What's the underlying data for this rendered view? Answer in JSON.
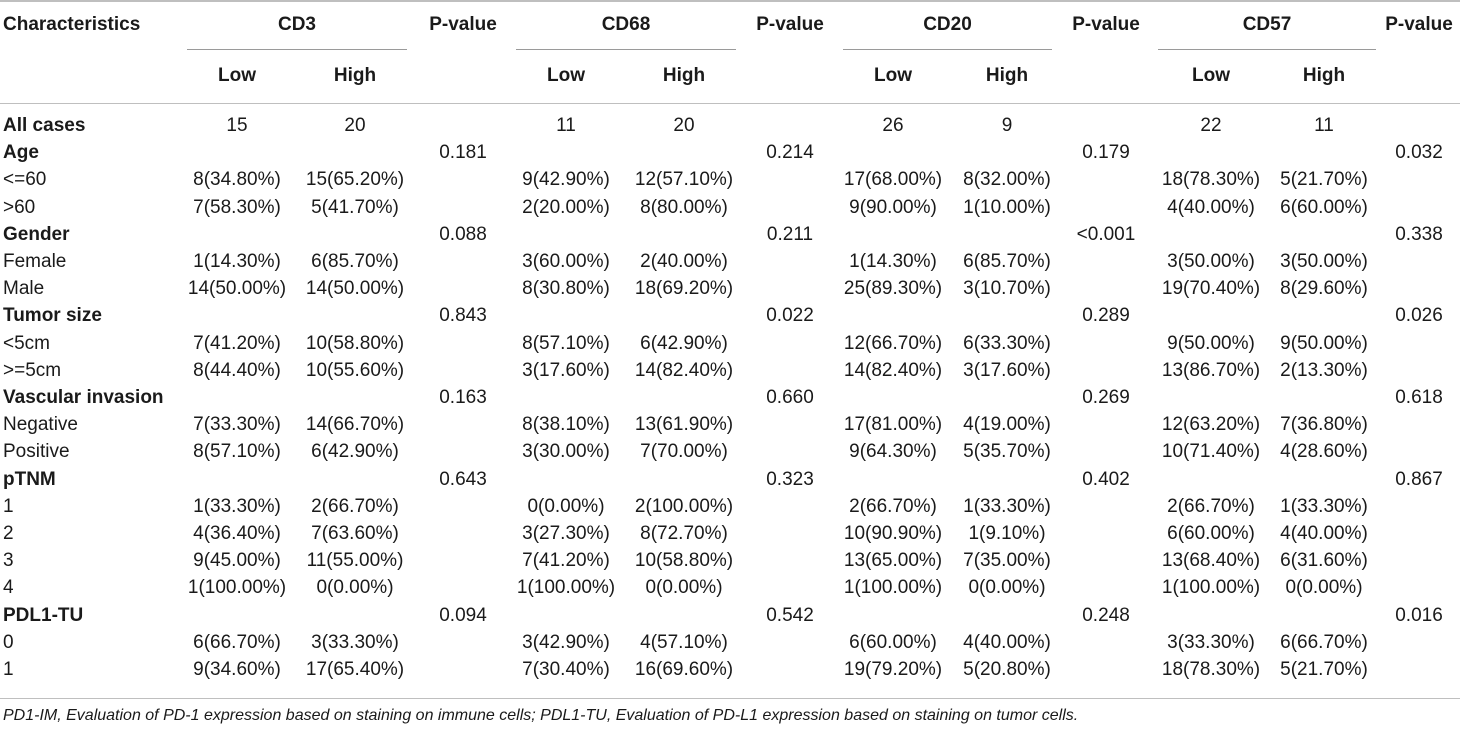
{
  "header": {
    "characteristics": "Characteristics",
    "groups": [
      "CD3",
      "CD68",
      "CD20",
      "CD57"
    ],
    "pvalue": "P-value",
    "low": "Low",
    "high": "High"
  },
  "rows": [
    {
      "label": "All cases",
      "bold": true,
      "values": [
        "15",
        "20",
        "",
        "11",
        "20",
        "",
        "26",
        "9",
        "",
        "22",
        "11",
        ""
      ]
    },
    {
      "label": "Age",
      "bold": true,
      "values": [
        "",
        "",
        "0.181",
        "",
        "",
        "0.214",
        "",
        "",
        "0.179",
        "",
        "",
        "0.032"
      ]
    },
    {
      "label": "<=60",
      "bold": false,
      "values": [
        "8(34.80%)",
        "15(65.20%)",
        "",
        "9(42.90%)",
        "12(57.10%)",
        "",
        "17(68.00%)",
        "8(32.00%)",
        "",
        "18(78.30%)",
        "5(21.70%)",
        ""
      ]
    },
    {
      "label": ">60",
      "bold": false,
      "values": [
        "7(58.30%)",
        "5(41.70%)",
        "",
        "2(20.00%)",
        "8(80.00%)",
        "",
        "9(90.00%)",
        "1(10.00%)",
        "",
        "4(40.00%)",
        "6(60.00%)",
        ""
      ]
    },
    {
      "label": "Gender",
      "bold": true,
      "values": [
        "",
        "",
        "0.088",
        "",
        "",
        "0.211",
        "",
        "",
        "<0.001",
        "",
        "",
        "0.338"
      ]
    },
    {
      "label": "Female",
      "bold": false,
      "values": [
        "1(14.30%)",
        "6(85.70%)",
        "",
        "3(60.00%)",
        "2(40.00%)",
        "",
        "1(14.30%)",
        "6(85.70%)",
        "",
        "3(50.00%)",
        "3(50.00%)",
        ""
      ]
    },
    {
      "label": "Male",
      "bold": false,
      "values": [
        "14(50.00%)",
        "14(50.00%)",
        "",
        "8(30.80%)",
        "18(69.20%)",
        "",
        "25(89.30%)",
        "3(10.70%)",
        "",
        "19(70.40%)",
        "8(29.60%)",
        ""
      ]
    },
    {
      "label": "Tumor size",
      "bold": true,
      "values": [
        "",
        "",
        "0.843",
        "",
        "",
        "0.022",
        "",
        "",
        "0.289",
        "",
        "",
        "0.026"
      ]
    },
    {
      "label": "<5cm",
      "bold": false,
      "values": [
        "7(41.20%)",
        "10(58.80%)",
        "",
        "8(57.10%)",
        "6(42.90%)",
        "",
        "12(66.70%)",
        "6(33.30%)",
        "",
        "9(50.00%)",
        "9(50.00%)",
        ""
      ]
    },
    {
      "label": ">=5cm",
      "bold": false,
      "values": [
        "8(44.40%)",
        "10(55.60%)",
        "",
        "3(17.60%)",
        "14(82.40%)",
        "",
        "14(82.40%)",
        "3(17.60%)",
        "",
        "13(86.70%)",
        "2(13.30%)",
        ""
      ]
    },
    {
      "label": "Vascular invasion",
      "bold": true,
      "values": [
        "",
        "",
        "0.163",
        "",
        "",
        "0.660",
        "",
        "",
        "0.269",
        "",
        "",
        "0.618"
      ]
    },
    {
      "label": "Negative",
      "bold": false,
      "values": [
        "7(33.30%)",
        "14(66.70%)",
        "",
        "8(38.10%)",
        "13(61.90%)",
        "",
        "17(81.00%)",
        "4(19.00%)",
        "",
        "12(63.20%)",
        "7(36.80%)",
        ""
      ]
    },
    {
      "label": "Positive",
      "bold": false,
      "values": [
        "8(57.10%)",
        "6(42.90%)",
        "",
        "3(30.00%)",
        "7(70.00%)",
        "",
        "9(64.30%)",
        "5(35.70%)",
        "",
        "10(71.40%)",
        "4(28.60%)",
        ""
      ]
    },
    {
      "label": "pTNM",
      "bold": true,
      "values": [
        "",
        "",
        "0.643",
        "",
        "",
        "0.323",
        "",
        "",
        "0.402",
        "",
        "",
        "0.867"
      ]
    },
    {
      "label": "1",
      "bold": false,
      "values": [
        "1(33.30%)",
        "2(66.70%)",
        "",
        "0(0.00%)",
        "2(100.00%)",
        "",
        "2(66.70%)",
        "1(33.30%)",
        "",
        "2(66.70%)",
        "1(33.30%)",
        ""
      ]
    },
    {
      "label": "2",
      "bold": false,
      "values": [
        "4(36.40%)",
        "7(63.60%)",
        "",
        "3(27.30%)",
        "8(72.70%)",
        "",
        "10(90.90%)",
        "1(9.10%)",
        "",
        "6(60.00%)",
        "4(40.00%)",
        ""
      ]
    },
    {
      "label": "3",
      "bold": false,
      "values": [
        "9(45.00%)",
        "11(55.00%)",
        "",
        "7(41.20%)",
        "10(58.80%)",
        "",
        "13(65.00%)",
        "7(35.00%)",
        "",
        "13(68.40%)",
        "6(31.60%)",
        ""
      ]
    },
    {
      "label": "4",
      "bold": false,
      "values": [
        "1(100.00%)",
        "0(0.00%)",
        "",
        "1(100.00%)",
        "0(0.00%)",
        "",
        "1(100.00%)",
        "0(0.00%)",
        "",
        "1(100.00%)",
        "0(0.00%)",
        ""
      ]
    },
    {
      "label": "PDL1-TU",
      "bold": true,
      "values": [
        "",
        "",
        "0.094",
        "",
        "",
        "0.542",
        "",
        "",
        "0.248",
        "",
        "",
        "0.016"
      ]
    },
    {
      "label": "0",
      "bold": false,
      "values": [
        "6(66.70%)",
        "3(33.30%)",
        "",
        "3(42.90%)",
        "4(57.10%)",
        "",
        "6(60.00%)",
        "4(40.00%)",
        "",
        "3(33.30%)",
        "6(66.70%)",
        ""
      ]
    },
    {
      "label": "1",
      "bold": false,
      "values": [
        "9(34.60%)",
        "17(65.40%)",
        "",
        "7(30.40%)",
        "16(69.60%)",
        "",
        "19(79.20%)",
        "5(20.80%)",
        "",
        "18(78.30%)",
        "5(21.70%)",
        ""
      ]
    }
  ],
  "footnote": "PD1-IM, Evaluation of PD-1 expression based on staining on immune cells; PDL1-TU, Evaluation of PD-L1 expression based on staining on tumor cells."
}
